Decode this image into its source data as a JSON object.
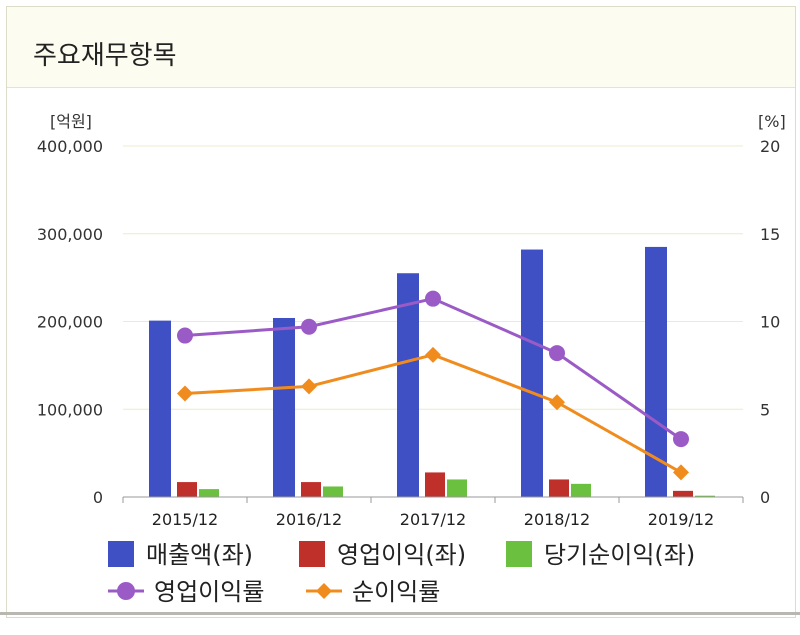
{
  "panel": {
    "title": "주요재무항목"
  },
  "chart_data": {
    "type": "bar",
    "categories": [
      "2015/12",
      "2016/12",
      "2017/12",
      "2018/12",
      "2019/12"
    ],
    "left_axis": {
      "unit_label": "[억원]",
      "ylim": [
        0,
        400000
      ],
      "ticks": [
        "400,000",
        "300,000",
        "200,000",
        "100,000",
        "0"
      ],
      "tick_values": [
        400000,
        300000,
        200000,
        100000,
        0
      ]
    },
    "right_axis": {
      "unit_label": "[%]",
      "ylim": [
        0,
        20
      ],
      "ticks": [
        "20",
        "15",
        "10",
        "5",
        "0"
      ],
      "tick_values": [
        20,
        15,
        10,
        5,
        0
      ]
    },
    "bar_series": [
      {
        "name": "매출액(좌)",
        "color": "#3f4fc4",
        "values": [
          201000,
          204000,
          255000,
          282000,
          285000
        ]
      },
      {
        "name": "영업이익(좌)",
        "color": "#c0302a",
        "values": [
          17000,
          17000,
          28000,
          20000,
          7000
        ]
      },
      {
        "name": "당기순이익(좌)",
        "color": "#6cc040",
        "values": [
          9000,
          12000,
          20000,
          15000,
          1500
        ]
      }
    ],
    "line_series": [
      {
        "name": "영업이익률",
        "color": "#9b5bc6",
        "marker": "circle",
        "values": [
          9.2,
          9.7,
          11.3,
          8.2,
          3.3
        ]
      },
      {
        "name": "순이익률",
        "color": "#f08c1e",
        "marker": "diamond",
        "values": [
          5.9,
          6.3,
          8.1,
          5.4,
          1.4
        ]
      }
    ],
    "grid": true,
    "legend_position": "bottom"
  }
}
